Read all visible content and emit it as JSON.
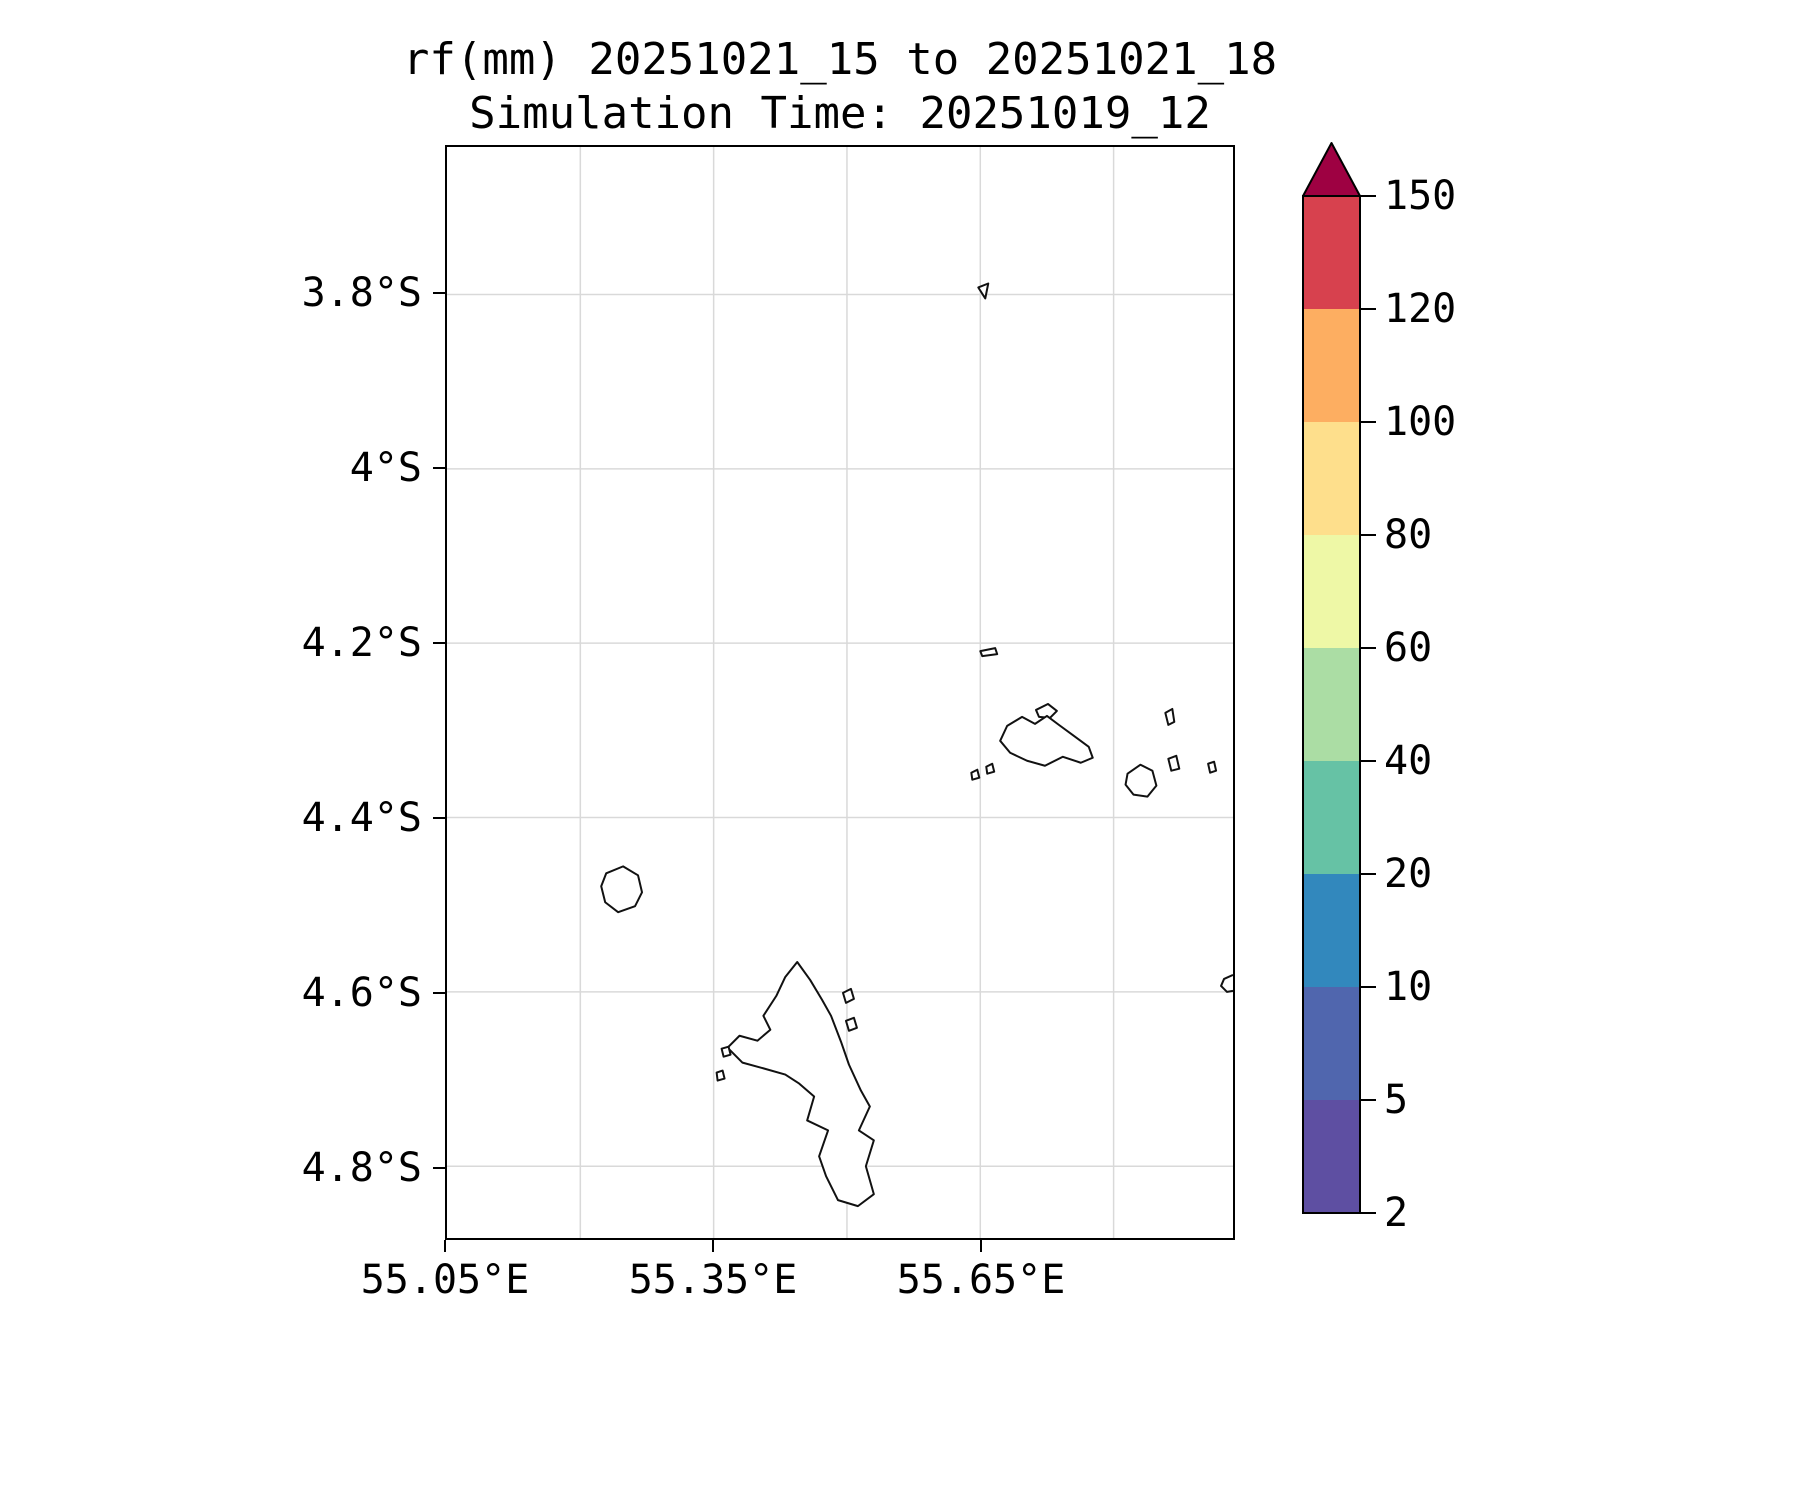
{
  "figure": {
    "title_line1": "rf(mm) 20251021_15 to 20251021_18",
    "title_line2": "Simulation Time: 20251019_12"
  },
  "map": {
    "x_tick_labels": [
      "55.05°E",
      "55.35°E",
      "55.65°E"
    ],
    "y_tick_labels": [
      "3.8°S",
      "4°S",
      "4.2°S",
      "4.4°S",
      "4.6°S",
      "4.8°S"
    ]
  },
  "colorbar": {
    "tick_labels": [
      "150",
      "120",
      "100",
      "80",
      "60",
      "40",
      "20",
      "10",
      "5",
      "2"
    ],
    "levels_mm": [
      2,
      5,
      10,
      20,
      40,
      60,
      80,
      100,
      120,
      150
    ],
    "segment_colors_low_to_high": [
      "#5e4fa2",
      "#5066ae",
      "#3288bd",
      "#66c2a5",
      "#abdda4",
      "#eef8a6",
      "#fedf8c",
      "#fdae61",
      "#d7414e"
    ],
    "over_color": "#9e0142",
    "outline_color": "#000000"
  },
  "chart_data": {
    "type": "heatmap",
    "title": "rf(mm) 20251021_15 to 20251021_18",
    "subtitle": "Simulation Time: 20251019_12",
    "variable": "rf",
    "units": "mm",
    "valid_period": "20251021_15 to 20251021_18",
    "simulation_time": "20251019_12",
    "x_tick_labels": [
      "55.05°E",
      "55.35°E",
      "55.65°E"
    ],
    "y_tick_labels": [
      "3.8°S",
      "4°S",
      "4.2°S",
      "4.4°S",
      "4.6°S",
      "4.8°S"
    ],
    "xlim_deg_east": [
      55.05,
      55.93
    ],
    "ylim_deg_south": [
      3.63,
      4.88
    ],
    "grid": true,
    "colorbar_levels_mm": [
      2,
      5,
      10,
      20,
      40,
      60,
      80,
      100,
      120,
      150
    ],
    "colorbar_colors_low_to_high": [
      "#5e4fa2",
      "#5066ae",
      "#3288bd",
      "#66c2a5",
      "#abdda4",
      "#eef8a6",
      "#fedf8c",
      "#fdae61",
      "#d7414e"
    ],
    "colorbar_over_color": "#9e0142",
    "legend_position": "right vertical colorbar with over-arrow",
    "values": [],
    "note": "No rainfall at or above the minimum 2 mm contour level is shaded anywhere in the domain; the map shows only unfilled island coastlines (Seychelles: Mahé, Silhouette, Praslin, Curieuse, La Digue and nearby islets) over light gray graticule lines."
  }
}
